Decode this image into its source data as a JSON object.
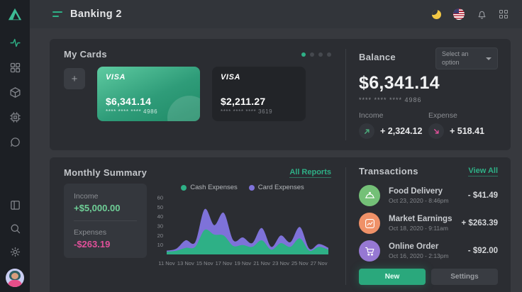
{
  "topbar": {
    "title": "Banking 2",
    "icons": [
      "menu-icon",
      "moon-icon",
      "us-flag-icon",
      "bell-icon",
      "apps-grid-icon"
    ]
  },
  "sidebar": {
    "icons": [
      "logo-triangle",
      "activity-icon",
      "dashboard-grid-icon",
      "package-icon",
      "chip-icon",
      "chat-icon",
      "layout-icon",
      "search-icon",
      "settings-gear-icon",
      "user-avatar"
    ]
  },
  "my_cards": {
    "title": "My Cards",
    "add_label": "+",
    "carousel_dots": 4,
    "cards": [
      {
        "brand": "VISA",
        "amount": "$6,341.14",
        "number": "**** **** **** 4986",
        "style": "green"
      },
      {
        "brand": "VISA",
        "amount": "$2,211.27",
        "number": "**** **** **** 3619",
        "style": "dark"
      }
    ]
  },
  "balance": {
    "title": "Balance",
    "dropdown_label": "Select an option",
    "amount": "$6,341.14",
    "card_number": "**** **** **** 4986",
    "income": {
      "label": "Income",
      "value": "+ 2,324.12"
    },
    "expense": {
      "label": "Expense",
      "value": "+ 518.41"
    }
  },
  "monthly_summary": {
    "title": "Monthly Summary",
    "link": "All Reports",
    "income_label": "Income",
    "income_value": "+$5,000.00",
    "expenses_label": "Expenses",
    "expenses_value": "-$263.19"
  },
  "chart_data": {
    "type": "area",
    "stacked": true,
    "title": "Monthly Summary",
    "x": [
      "11 Nov",
      "12 Nov",
      "13 Nov",
      "14 Nov",
      "15 Nov",
      "16 Nov",
      "17 Nov",
      "18 Nov",
      "19 Nov",
      "20 Nov",
      "21 Nov",
      "22 Nov",
      "23 Nov",
      "24 Nov",
      "25 Nov",
      "26 Nov",
      "27 Nov",
      "28 Nov"
    ],
    "x_tick_labels": [
      "11 Nov",
      "13 Nov",
      "15 Nov",
      "17 Nov",
      "19 Nov",
      "21 Nov",
      "23 Nov",
      "25 Nov",
      "27 Nov"
    ],
    "series": [
      {
        "name": "Cash Expenses",
        "color": "#2eb086",
        "values": [
          3,
          4,
          7,
          8,
          26,
          21,
          20,
          9,
          10,
          8,
          15,
          5,
          12,
          8,
          17,
          4,
          8,
          5
        ]
      },
      {
        "name": "Card Expenses",
        "color": "#7e72d9",
        "values": [
          1,
          2,
          8,
          5,
          22,
          10,
          24,
          6,
          8,
          4,
          13,
          3,
          8,
          5,
          12,
          2,
          3,
          2
        ]
      }
    ],
    "ylim": [
      0,
      60
    ],
    "yticks": [
      10,
      20,
      30,
      40,
      50,
      60
    ],
    "grid": false,
    "legend_position": "top-center"
  },
  "transactions": {
    "title": "Transactions",
    "link": "View All",
    "items": [
      {
        "icon": "food-dome-icon",
        "title": "Food Delivery",
        "date": "Oct 23, 2020 - 8:46pm",
        "amount": "- $41.49"
      },
      {
        "icon": "market-chart-icon",
        "title": "Market Earnings",
        "date": "Oct 18, 2020 - 9:11am",
        "amount": "+ $263.39"
      },
      {
        "icon": "shopping-cart-icon",
        "title": "Online Order",
        "date": "Oct 16, 2020 - 2:13pm",
        "amount": "- $92.00"
      }
    ],
    "buttons": {
      "new": "New",
      "settings": "Settings"
    }
  },
  "colors": {
    "accent_green": "#2eb086",
    "income_text": "#6fcf97",
    "expense_text": "#e0509a",
    "cash_series": "#2eb086",
    "card_series": "#7e72d9",
    "panel_bg": "#2b2d32",
    "sidebar_bg": "#1c1f24",
    "topbar_bg": "#32353a"
  }
}
